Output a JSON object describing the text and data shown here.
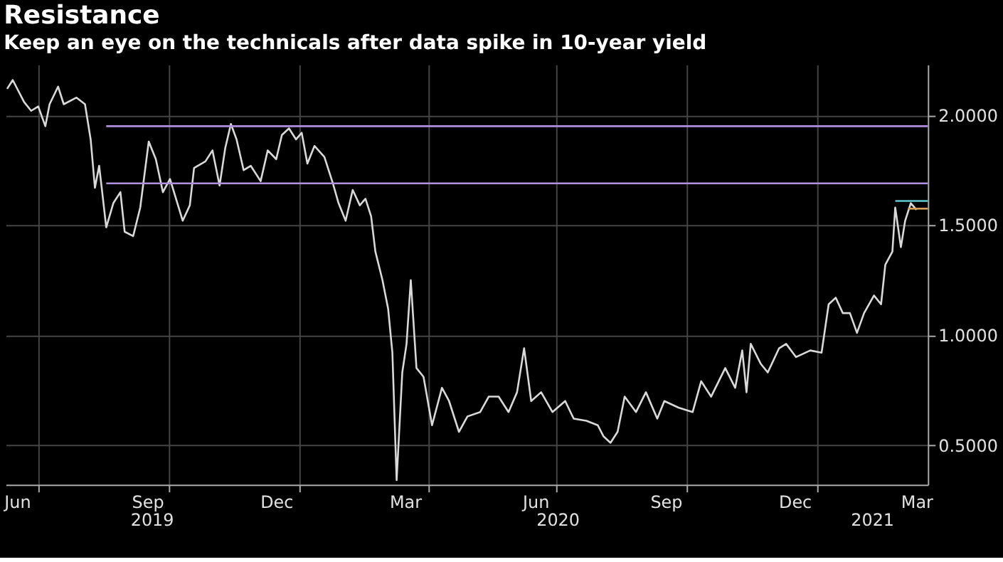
{
  "chart_data": {
    "type": "line",
    "title": "Resistance",
    "subtitle": "Keep an eye on the technicals after data spike in 10-year yield",
    "xlim": [
      "2019-06-08",
      "2021-03-20"
    ],
    "ylim": [
      0.32,
      2.23
    ],
    "yticks": [
      {
        "value": 0.5,
        "label": "0.5000"
      },
      {
        "value": 1.0,
        "label": "1.0000"
      },
      {
        "value": 1.5,
        "label": "1.5000"
      },
      {
        "value": 2.0,
        "label": "2.0000"
      }
    ],
    "xticks": [
      {
        "value": "2019-06-16",
        "label": "Jun"
      },
      {
        "value": "2019-07-01",
        "label": null
      },
      {
        "value": "2019-09-16",
        "label": "Sep"
      },
      {
        "value": "2019-10-01",
        "label": null
      },
      {
        "value": "2019-12-16",
        "label": "Dec"
      },
      {
        "value": "2020-01-01",
        "label": null
      },
      {
        "value": "2020-03-16",
        "label": "Mar"
      },
      {
        "value": "2020-04-01",
        "label": null
      },
      {
        "value": "2020-06-16",
        "label": "Jun"
      },
      {
        "value": "2020-07-01",
        "label": null
      },
      {
        "value": "2020-09-16",
        "label": "Sep"
      },
      {
        "value": "2020-10-01",
        "label": null
      },
      {
        "value": "2020-12-16",
        "label": "Dec"
      },
      {
        "value": "2021-01-01",
        "label": null
      },
      {
        "value": "2021-03-12",
        "label": "Mar"
      }
    ],
    "annotations": [
      "2019",
      "2020",
      "2021"
    ],
    "grid": true,
    "series": [
      {
        "color": "#d9d9d9",
        "x": [
          "2019-06-09",
          "2019-06-13",
          "2019-06-21",
          "2019-06-26",
          "2019-07-01",
          "2019-07-06",
          "2019-07-09",
          "2019-07-15",
          "2019-07-19",
          "2019-07-28",
          "2019-08-03",
          "2019-08-07",
          "2019-08-10",
          "2019-08-13",
          "2019-08-18",
          "2019-08-23",
          "2019-08-28",
          "2019-08-31",
          "2019-09-06",
          "2019-09-11",
          "2019-09-17",
          "2019-09-22",
          "2019-09-27",
          "2019-10-02",
          "2019-10-11",
          "2019-10-16",
          "2019-10-19",
          "2019-10-27",
          "2019-11-01",
          "2019-11-06",
          "2019-11-10",
          "2019-11-14",
          "2019-11-18",
          "2019-11-23",
          "2019-11-28",
          "2019-12-05",
          "2019-12-10",
          "2019-12-16",
          "2019-12-20",
          "2019-12-25",
          "2019-12-30",
          "2020-01-03",
          "2020-01-07",
          "2020-01-12",
          "2020-01-19",
          "2020-01-25",
          "2020-01-29",
          "2020-02-03",
          "2020-02-08",
          "2020-02-13",
          "2020-02-17",
          "2020-02-21",
          "2020-02-24",
          "2020-02-29",
          "2020-03-04",
          "2020-03-07",
          "2020-03-10",
          "2020-03-14",
          "2020-03-17",
          "2020-03-20",
          "2020-03-24",
          "2020-03-29",
          "2020-04-04",
          "2020-04-11",
          "2020-04-16",
          "2020-04-23",
          "2020-04-29",
          "2020-05-08",
          "2020-05-14",
          "2020-05-21",
          "2020-05-28",
          "2020-06-03",
          "2020-06-08",
          "2020-06-13",
          "2020-06-20",
          "2020-06-28",
          "2020-07-07",
          "2020-07-13",
          "2020-07-22",
          "2020-07-30",
          "2020-08-03",
          "2020-08-08",
          "2020-08-13",
          "2020-08-18",
          "2020-08-26",
          "2020-09-02",
          "2020-09-10",
          "2020-09-15",
          "2020-09-25",
          "2020-10-05",
          "2020-10-11",
          "2020-10-18",
          "2020-10-28",
          "2020-11-04",
          "2020-11-09",
          "2020-11-12",
          "2020-11-15",
          "2020-11-22",
          "2020-11-27",
          "2020-12-05",
          "2020-12-10",
          "2020-12-17",
          "2020-12-27",
          "2021-01-04",
          "2021-01-09",
          "2021-01-14",
          "2021-01-19",
          "2021-01-24",
          "2021-01-29",
          "2021-02-03",
          "2021-02-10",
          "2021-02-15",
          "2021-02-18",
          "2021-02-23",
          "2021-02-25",
          "2021-03-01",
          "2021-03-04",
          "2021-03-08",
          "2021-03-12"
        ],
        "values": [
          2.12,
          2.16,
          2.06,
          2.02,
          2.04,
          1.95,
          2.05,
          2.13,
          2.05,
          2.08,
          2.05,
          1.89,
          1.67,
          1.77,
          1.49,
          1.6,
          1.65,
          1.47,
          1.45,
          1.58,
          1.88,
          1.8,
          1.65,
          1.71,
          1.52,
          1.59,
          1.76,
          1.79,
          1.84,
          1.68,
          1.85,
          1.96,
          1.89,
          1.75,
          1.77,
          1.7,
          1.84,
          1.8,
          1.91,
          1.94,
          1.89,
          1.92,
          1.78,
          1.86,
          1.81,
          1.69,
          1.6,
          1.52,
          1.66,
          1.59,
          1.62,
          1.54,
          1.38,
          1.25,
          1.12,
          0.92,
          0.34,
          0.83,
          0.96,
          1.25,
          0.85,
          0.81,
          0.59,
          0.76,
          0.7,
          0.56,
          0.63,
          0.65,
          0.72,
          0.72,
          0.65,
          0.74,
          0.94,
          0.7,
          0.74,
          0.65,
          0.7,
          0.62,
          0.61,
          0.59,
          0.54,
          0.51,
          0.56,
          0.72,
          0.65,
          0.74,
          0.62,
          0.7,
          0.67,
          0.65,
          0.79,
          0.72,
          0.85,
          0.76,
          0.93,
          0.74,
          0.96,
          0.87,
          0.83,
          0.94,
          0.96,
          0.9,
          0.93,
          0.92,
          1.14,
          1.17,
          1.1,
          1.1,
          1.01,
          1.1,
          1.18,
          1.14,
          1.32,
          1.38,
          1.58,
          1.4,
          1.52,
          1.6,
          1.57
        ]
      },
      {
        "color": "#b08fe0",
        "x": [
          "2019-08-18",
          "2021-03-20"
        ],
        "values": [
          1.95,
          1.95
        ]
      },
      {
        "color": "#b08fe0",
        "x": [
          "2019-08-18",
          "2021-03-20"
        ],
        "values": [
          1.69,
          1.69
        ]
      },
      {
        "color": "#5fc8d0",
        "x": [
          "2021-02-25",
          "2021-03-20"
        ],
        "values": [
          1.61,
          1.61
        ]
      },
      {
        "color": "#d9a05b",
        "x": [
          "2021-03-06",
          "2021-03-20"
        ],
        "values": [
          1.575,
          1.575
        ]
      }
    ]
  }
}
